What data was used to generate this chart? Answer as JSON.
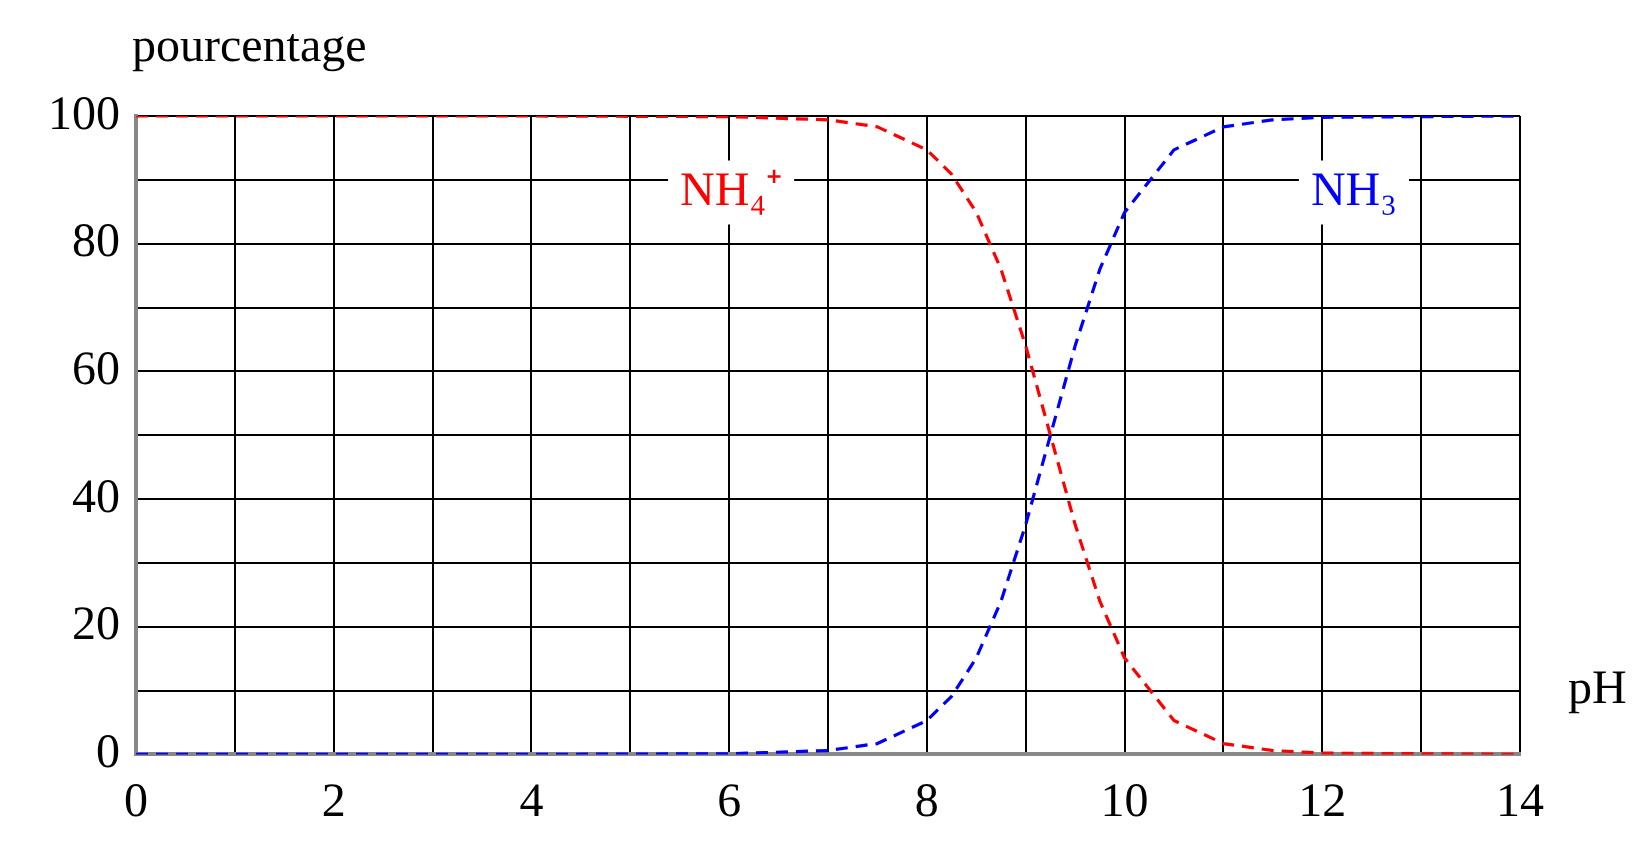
{
  "chart_data": {
    "type": "line",
    "xlabel": "pH",
    "ylabel": "pourcentage",
    "xlim": [
      0,
      14
    ],
    "ylim": [
      0,
      100
    ],
    "xticks": [
      0,
      {
        "value": 1,
        "label": null
      },
      2,
      {
        "value": 3,
        "label": null
      },
      4,
      {
        "value": 5,
        "label": null
      },
      6,
      {
        "value": 7,
        "label": null
      },
      8,
      {
        "value": 9,
        "label": null
      },
      10,
      {
        "value": 11,
        "label": null
      },
      12,
      {
        "value": 13,
        "label": null
      },
      14
    ],
    "yticks": [
      0,
      {
        "value": 10,
        "label": null
      },
      20,
      {
        "value": 30,
        "label": null
      },
      40,
      {
        "value": 50,
        "label": null
      },
      60,
      {
        "value": 70,
        "label": null
      },
      80,
      {
        "value": 90,
        "label": null
      },
      100
    ],
    "grid": true,
    "legend": false,
    "marker": "none",
    "line_style": "dashed",
    "x": [
      0,
      2,
      4,
      6,
      7,
      7.5,
      8,
      8.25,
      8.5,
      8.75,
      9,
      9.25,
      9.5,
      9.75,
      10,
      10.5,
      11,
      11.5,
      12,
      14
    ],
    "series": [
      {
        "name": "NH₄⁺",
        "color": "#ff0000",
        "values": [
          100,
          100,
          100,
          99.9,
          99.4,
          98.3,
          94.7,
          90.9,
          84.9,
          76.0,
          64.0,
          50,
          36.0,
          24.0,
          15.1,
          5.3,
          1.7,
          0.6,
          0.2,
          0
        ]
      },
      {
        "name": "NH₃",
        "color": "#0000ff",
        "values": [
          0,
          0,
          0,
          0.1,
          0.6,
          1.7,
          5.3,
          9.1,
          15.1,
          24.0,
          36.0,
          50,
          64.0,
          76.0,
          84.9,
          94.7,
          98.3,
          99.4,
          99.8,
          100
        ]
      }
    ]
  }
}
